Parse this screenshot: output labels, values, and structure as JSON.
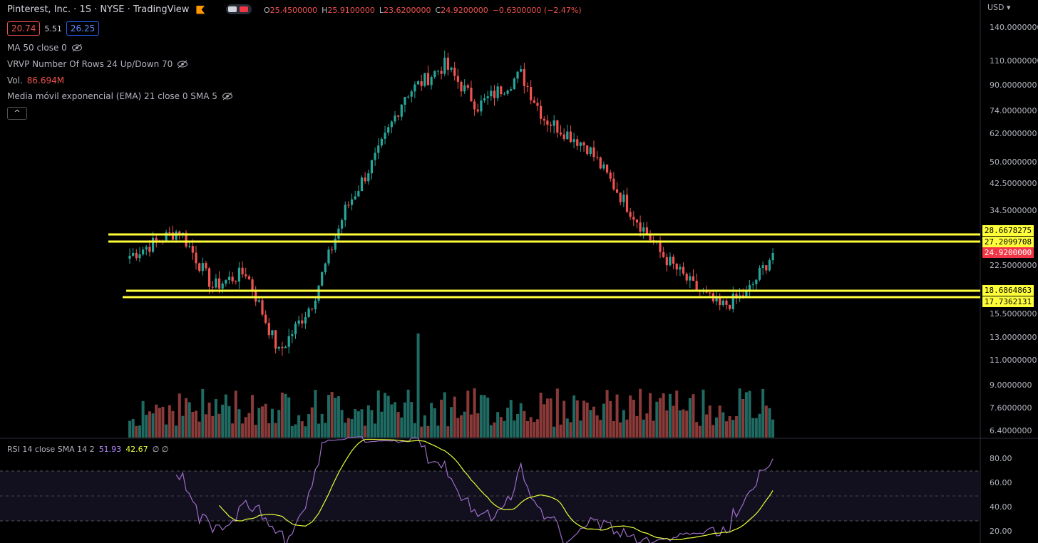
{
  "header": {
    "title": "Pinterest, Inc. · 1S · NYSE · TradingView",
    "ohlc": [
      {
        "k": "O",
        "v": "25.4500000"
      },
      {
        "k": "H",
        "v": "25.9100000"
      },
      {
        "k": "L",
        "v": "23.6200000"
      },
      {
        "k": "C",
        "v": "24.9200000"
      }
    ],
    "change": "−0.6300000 (−2.47%)",
    "currency": "USD"
  },
  "quote_boxes": {
    "sell": "20.74",
    "spread": "5.51",
    "buy": "26.25"
  },
  "indicators": {
    "ma": "MA 50 close 0",
    "vrvp": "VRVP Number Of Rows 24 Up/Down 70",
    "vol_label": "Vol.",
    "vol_value": "86.694M",
    "ema": "Media móvil exponencial (EMA) 21 close 0 SMA 5",
    "collapse": "^"
  },
  "rsi_legend": {
    "label": "RSI 14 close SMA 14 2",
    "rsi": "51.93",
    "sma": "42.67",
    "extra": "∅ ∅"
  },
  "colors": {
    "up": "#26a69a",
    "down": "#ef5350",
    "level": "#ffff3a",
    "rsi": "#9c6ec9",
    "rsi_ma": "#e8ff3a",
    "accent": "#ff9800"
  },
  "price_axis": {
    "labels": [
      "140.0000000",
      "110.0000000",
      "90.0000000",
      "74.0000000",
      "62.0000000",
      "50.0000000",
      "42.5000000",
      "34.5000000",
      "22.5000000",
      "15.5000000",
      "13.0000000",
      "11.0000000",
      "9.0000000",
      "7.6000000",
      "6.4000000"
    ],
    "level_tags": [
      "28.6678275",
      "27.2099708",
      "18.6864863",
      "17.7362131"
    ],
    "last_price": "24.9200000"
  },
  "rsi_axis": {
    "labels": [
      "80.00",
      "60.00",
      "40.00",
      "20.00"
    ]
  },
  "chart_data": {
    "type": "candlestick",
    "symbol": "Pinterest, Inc.",
    "timeframe": "1S",
    "scale": "log",
    "horizontal_levels": [
      28.6678275,
      27.2099708,
      18.6864863,
      17.7362131
    ],
    "last_price": 24.92,
    "close_path": [
      {
        "week": 0,
        "close": 24.5
      },
      {
        "week": 15,
        "close": 29
      },
      {
        "week": 25,
        "close": 20
      },
      {
        "week": 35,
        "close": 22
      },
      {
        "week": 45,
        "close": 13
      },
      {
        "week": 55,
        "close": 18
      },
      {
        "week": 65,
        "close": 33
      },
      {
        "week": 75,
        "close": 48
      },
      {
        "week": 83,
        "close": 70
      },
      {
        "week": 95,
        "close": 85
      },
      {
        "week": 105,
        "close": 65
      },
      {
        "week": 118,
        "close": 80
      },
      {
        "week": 125,
        "close": 60
      },
      {
        "week": 138,
        "close": 50
      },
      {
        "week": 150,
        "close": 34
      },
      {
        "week": 160,
        "close": 25
      },
      {
        "week": 170,
        "close": 20
      },
      {
        "week": 178,
        "close": 17.5
      },
      {
        "week": 186,
        "close": 19
      },
      {
        "week": 194,
        "close": 24.92
      }
    ],
    "rsi": {
      "last": 51.93,
      "sma_last": 42.67,
      "levels": [
        70,
        50,
        30
      ]
    }
  }
}
